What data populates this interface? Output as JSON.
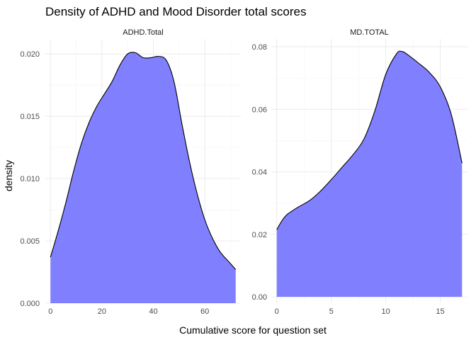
{
  "chart_data": {
    "type": "area",
    "title": "Density of ADHD and Mood Disorder total scores",
    "xlabel": "Cumulative score for question set",
    "ylabel": "density",
    "fill_color": "#8080ff",
    "line_color": "#000000",
    "grid": true,
    "legend": "none",
    "panels": [
      {
        "strip_label": "ADHD.Total",
        "xlim": [
          -2,
          74
        ],
        "ylim": [
          0,
          0.0212
        ],
        "x_ticks": [
          0,
          20,
          40,
          60
        ],
        "x_tick_labels": [
          "0",
          "20",
          "40",
          "60"
        ],
        "y_ticks": [
          0,
          0.005,
          0.01,
          0.015,
          0.02
        ],
        "y_tick_labels": [
          "0.000",
          "0.005",
          "0.010",
          "0.015",
          "0.020"
        ],
        "x": [
          0,
          3,
          6,
          9,
          12,
          15,
          18,
          21,
          24,
          27,
          30,
          33,
          36,
          39,
          42,
          45,
          48,
          51,
          54,
          57,
          60,
          63,
          66,
          69,
          72
        ],
        "y": [
          0.0037,
          0.0058,
          0.0081,
          0.0106,
          0.0128,
          0.0145,
          0.0158,
          0.0168,
          0.0178,
          0.0191,
          0.02,
          0.0201,
          0.0197,
          0.0197,
          0.0198,
          0.0195,
          0.0178,
          0.0145,
          0.0114,
          0.0088,
          0.0067,
          0.0052,
          0.0041,
          0.0034,
          0.0027
        ]
      },
      {
        "strip_label": "MD.TOTAL",
        "xlim": [
          -0.5,
          17.5
        ],
        "ylim": [
          -0.002,
          0.0825
        ],
        "x_ticks": [
          0,
          5,
          10,
          15
        ],
        "x_tick_labels": [
          "0",
          "5",
          "10",
          "15"
        ],
        "y_ticks": [
          0,
          0.02,
          0.04,
          0.06,
          0.08
        ],
        "y_tick_labels": [
          "0.00",
          "0.02",
          "0.04",
          "0.06",
          "0.08"
        ],
        "x": [
          0,
          0.5,
          1,
          2,
          3,
          4,
          5,
          6,
          7,
          8,
          9,
          10,
          11,
          11.5,
          12,
          13,
          14,
          15,
          16,
          17
        ],
        "y": [
          0.0215,
          0.0245,
          0.0265,
          0.0288,
          0.0308,
          0.0338,
          0.0375,
          0.0415,
          0.0455,
          0.0505,
          0.0595,
          0.0712,
          0.0778,
          0.0785,
          0.0775,
          0.0748,
          0.0718,
          0.0672,
          0.0585,
          0.0428
        ]
      }
    ]
  }
}
